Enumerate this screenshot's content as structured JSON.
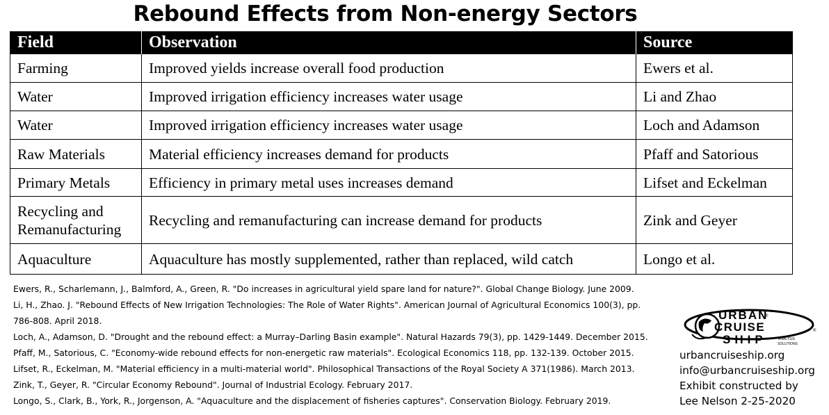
{
  "title": "Rebound Effects from Non-energy Sectors",
  "table": {
    "headers": [
      "Field",
      "Observation",
      "Source"
    ],
    "rows": [
      {
        "field": "Farming",
        "observation": "Improved yields increase overall food production",
        "source": "Ewers et al."
      },
      {
        "field": "Water",
        "observation": "Improved irrigation efficiency increases water usage",
        "source": "Li and Zhao"
      },
      {
        "field": "Water",
        "observation": "Improved irrigation efficiency increases water usage",
        "source": "Loch and Adamson"
      },
      {
        "field": "Raw Materials",
        "observation": "Material efficiency increases demand for products",
        "source": "Pfaff and Satorious"
      },
      {
        "field": "Primary Metals",
        "observation": "Efficiency in primary metal uses increases demand",
        "source": "Lifset and Eckelman"
      },
      {
        "field": "Recycling and Remanufacturing",
        "observation": "Recycling and remanufacturing can increase demand for products",
        "source": "Zink and Geyer"
      },
      {
        "field": "Aquaculture",
        "observation": "Aquaculture has mostly supplemented, rather than replaced, wild catch",
        "source": "Longo et al."
      }
    ]
  },
  "references": [
    "Ewers, R., Scharlemann, J., Balmford, A., Green, R. \"Do increases in agricultural yield spare land for nature?\". Global Change Biology. June 2009.",
    "Li, H., Zhao. J. \"Rebound Effects of New Irrigation Technologies: The Role of Water Rights\". American Journal of Agricultural Economics 100(3), pp.",
    "786-808. April 2018.",
    "Loch, A., Adamson, D. \"Drought and the rebound effect: a Murray–Darling Basin example\". Natural Hazards 79(3), pp. 1429-1449. December 2015.",
    "Pfaff, M., Satorious, C. \"Economy-wide rebound effects for non-energetic raw materials\". Ecological Economics 118, pp. 132-139. October 2015.",
    "Lifset, R., Eckelman, M. \"Material efficiency in a multi-material world\". Philosophical Transactions of the Royal Society A 371(1986). March 2013.",
    "Zink, T., Geyer, R. \"Circular Economy Rebound\". Journal of Industrial Ecology. February 2017.",
    "Longo, S., Clark, B., York, R., Jorgenson, A. \"Aquaculture and the displacement of fisheries captures\". Conservation Biology. February 2019."
  ],
  "logo": {
    "line1": "URBAN",
    "line2": "CRUISE",
    "line3": "SHIP",
    "tagline1": "ANALYSIS",
    "tagline2": "SOLUTIONS",
    "registered": "®"
  },
  "contact": {
    "website": "urbancruiseship.org",
    "email": "info@urbancruiseship.org",
    "credit_line1": "Exhibit constructed by",
    "credit_line2": "Lee Nelson 2-25-2020"
  }
}
